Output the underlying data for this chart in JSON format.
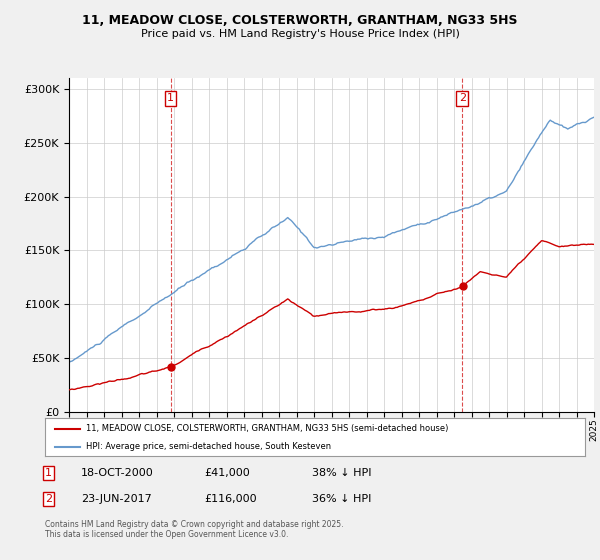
{
  "title_line1": "11, MEADOW CLOSE, COLSTERWORTH, GRANTHAM, NG33 5HS",
  "title_line2": "Price paid vs. HM Land Registry's House Price Index (HPI)",
  "legend_label_red": "11, MEADOW CLOSE, COLSTERWORTH, GRANTHAM, NG33 5HS (semi-detached house)",
  "legend_label_blue": "HPI: Average price, semi-detached house, South Kesteven",
  "footer": "Contains HM Land Registry data © Crown copyright and database right 2025.\nThis data is licensed under the Open Government Licence v3.0.",
  "sale1_date": "18-OCT-2000",
  "sale1_price": "£41,000",
  "sale1_hpi": "38% ↓ HPI",
  "sale1_year": 2000.8,
  "sale1_value": 41000,
  "sale2_date": "23-JUN-2017",
  "sale2_price": "£116,000",
  "sale2_hpi": "36% ↓ HPI",
  "sale2_year": 2017.47,
  "sale2_value": 116000,
  "color_red": "#cc0000",
  "color_blue": "#6699cc",
  "ylim_min": 0,
  "ylim_max": 310000,
  "xstart": 1995,
  "xend": 2025,
  "background_color": "#f0f0f0",
  "plot_bg_color": "#ffffff"
}
